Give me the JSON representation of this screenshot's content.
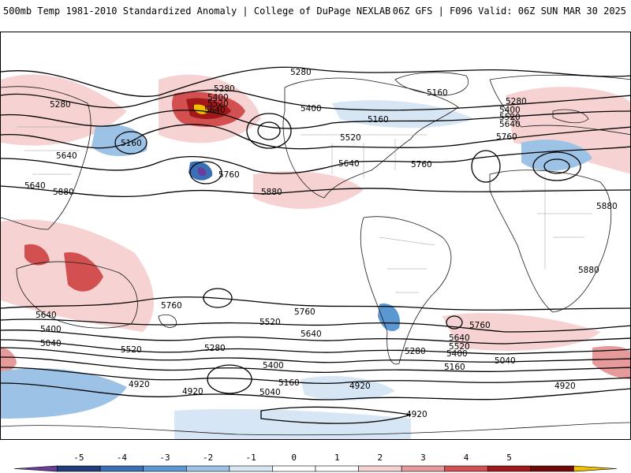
{
  "header": {
    "left": "500mb Temp 1981-2010 Standardized Anomaly | College of DuPage NEXLAB",
    "right": "06Z GFS | F096 Valid: 06Z SUN MAR 30 2025"
  },
  "colorbar": {
    "ticks": [
      "-5",
      "-4",
      "-3",
      "-2",
      "-1",
      "0",
      "1",
      "2",
      "3",
      "4",
      "5"
    ],
    "colors": [
      "#6a3d9a",
      "#1f3d7a",
      "#3a6fb5",
      "#5b97d1",
      "#9cc2e6",
      "#d6e6f4",
      "#ffffff",
      "#ffffff",
      "#f6d2d2",
      "#e79a9a",
      "#d25050",
      "#a01818",
      "#700808",
      "#f0c000"
    ]
  },
  "contour_labels": [
    "5280",
    "5280",
    "5400",
    "5520",
    "5640",
    "5160",
    "5280",
    "5400",
    "5160",
    "5280",
    "5400",
    "5520",
    "5640",
    "5760",
    "5640",
    "5520",
    "5160",
    "5760",
    "5640",
    "5640",
    "5880",
    "5760",
    "5880",
    "5880",
    "5880",
    "5760",
    "5640",
    "5400",
    "5040",
    "5520",
    "5280",
    "5400",
    "5520",
    "5760",
    "5640",
    "5760",
    "5640",
    "5520",
    "5400",
    "5280",
    "5160",
    "5040",
    "4920",
    "4920",
    "4920",
    "5040",
    "5160",
    "4920",
    "4920"
  ],
  "colors": {
    "contour": "#000000",
    "coast": "#1a1a1a",
    "border": "#999999"
  }
}
